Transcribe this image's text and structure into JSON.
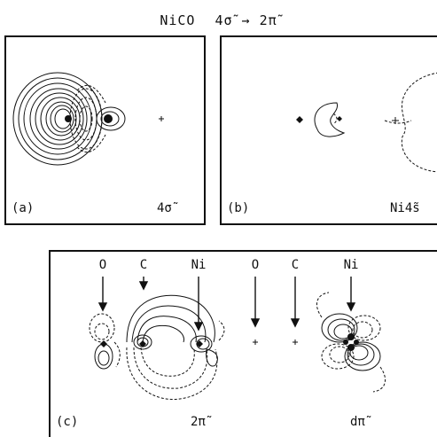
{
  "title": {
    "molecule": "NiCO",
    "transition": "4σ̃ → 2π̃"
  },
  "panels": {
    "a": {
      "label": "(a)",
      "orbital": "4σ̃"
    },
    "b": {
      "label": "(b)",
      "orbital": "Ni4s̃"
    },
    "c": {
      "label": "(c)",
      "orbital_left": "2π̃",
      "orbital_right": "dπ̃",
      "atoms_left": [
        "O",
        "C",
        "Ni"
      ],
      "atoms_right": [
        "O",
        "C",
        "Ni"
      ]
    }
  },
  "colors": {
    "ink": "#111111",
    "background": "#ffffff"
  }
}
